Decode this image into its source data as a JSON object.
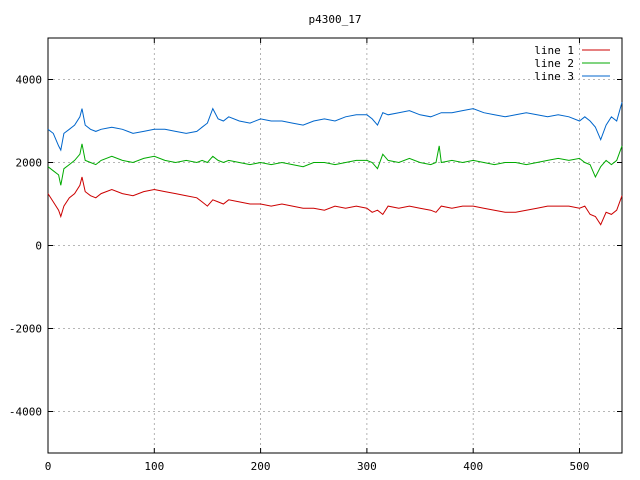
{
  "chart_data": {
    "type": "line",
    "title": "p4300_17",
    "xlabel": "",
    "ylabel": "",
    "xlim": [
      0,
      540
    ],
    "ylim": [
      -5000,
      5000
    ],
    "xticks": [
      0,
      100,
      200,
      300,
      400,
      500
    ],
    "yticks": [
      -4000,
      -2000,
      0,
      2000,
      4000
    ],
    "grid": true,
    "legend_position": "top-right",
    "series": [
      {
        "name": "line 1",
        "color": "#cc0000",
        "x": [
          0,
          5,
          10,
          12,
          15,
          20,
          25,
          30,
          32,
          35,
          40,
          45,
          50,
          60,
          70,
          80,
          90,
          100,
          110,
          120,
          130,
          140,
          145,
          150,
          155,
          160,
          165,
          170,
          180,
          190,
          200,
          210,
          220,
          230,
          240,
          250,
          260,
          270,
          280,
          290,
          300,
          305,
          310,
          315,
          320,
          330,
          340,
          350,
          360,
          365,
          370,
          380,
          390,
          400,
          410,
          420,
          430,
          440,
          450,
          460,
          470,
          480,
          490,
          500,
          505,
          510,
          515,
          520,
          525,
          530,
          535,
          540
        ],
        "y": [
          1250,
          1050,
          850,
          700,
          950,
          1150,
          1250,
          1450,
          1650,
          1300,
          1200,
          1150,
          1250,
          1350,
          1250,
          1200,
          1300,
          1350,
          1300,
          1250,
          1200,
          1150,
          1050,
          950,
          1100,
          1050,
          1000,
          1100,
          1050,
          1000,
          1000,
          950,
          1000,
          950,
          900,
          900,
          850,
          950,
          900,
          950,
          900,
          800,
          850,
          750,
          950,
          900,
          950,
          900,
          850,
          800,
          950,
          900,
          950,
          950,
          900,
          850,
          800,
          800,
          850,
          900,
          950,
          950,
          950,
          900,
          950,
          750,
          700,
          500,
          800,
          750,
          850,
          1200
        ]
      },
      {
        "name": "line 2",
        "color": "#00aa00",
        "x": [
          0,
          5,
          10,
          12,
          15,
          20,
          25,
          30,
          32,
          35,
          40,
          45,
          50,
          60,
          70,
          80,
          90,
          100,
          110,
          120,
          130,
          140,
          145,
          150,
          155,
          160,
          165,
          170,
          180,
          190,
          200,
          210,
          220,
          230,
          240,
          250,
          260,
          270,
          280,
          290,
          300,
          305,
          310,
          315,
          320,
          330,
          340,
          350,
          360,
          365,
          368,
          370,
          380,
          390,
          400,
          410,
          420,
          430,
          440,
          450,
          460,
          470,
          480,
          490,
          500,
          505,
          510,
          515,
          520,
          525,
          530,
          535,
          540
        ],
        "y": [
          1900,
          1800,
          1700,
          1450,
          1850,
          1950,
          2050,
          2200,
          2450,
          2050,
          2000,
          1950,
          2050,
          2150,
          2050,
          2000,
          2100,
          2150,
          2050,
          2000,
          2050,
          2000,
          2050,
          2000,
          2150,
          2050,
          2000,
          2050,
          2000,
          1950,
          2000,
          1950,
          2000,
          1950,
          1900,
          2000,
          2000,
          1950,
          2000,
          2050,
          2050,
          2000,
          1850,
          2200,
          2050,
          2000,
          2100,
          2000,
          1950,
          2000,
          2400,
          2000,
          2050,
          2000,
          2050,
          2000,
          1950,
          2000,
          2000,
          1950,
          2000,
          2050,
          2100,
          2050,
          2100,
          2000,
          1950,
          1650,
          1900,
          2050,
          1950,
          2050,
          2400
        ]
      },
      {
        "name": "line 3",
        "color": "#0066cc",
        "x": [
          0,
          5,
          10,
          12,
          15,
          20,
          25,
          30,
          32,
          35,
          40,
          45,
          50,
          60,
          70,
          80,
          90,
          100,
          110,
          120,
          130,
          140,
          145,
          150,
          155,
          160,
          165,
          170,
          180,
          190,
          200,
          210,
          220,
          230,
          240,
          250,
          260,
          270,
          280,
          290,
          300,
          305,
          310,
          315,
          320,
          330,
          340,
          350,
          360,
          365,
          370,
          380,
          390,
          400,
          410,
          420,
          430,
          440,
          450,
          460,
          470,
          480,
          490,
          500,
          505,
          510,
          515,
          520,
          525,
          530,
          535,
          540
        ],
        "y": [
          2800,
          2700,
          2400,
          2300,
          2700,
          2800,
          2900,
          3100,
          3300,
          2900,
          2800,
          2750,
          2800,
          2850,
          2800,
          2700,
          2750,
          2800,
          2800,
          2750,
          2700,
          2750,
          2850,
          2950,
          3300,
          3050,
          3000,
          3100,
          3000,
          2950,
          3050,
          3000,
          3000,
          2950,
          2900,
          3000,
          3050,
          3000,
          3100,
          3150,
          3150,
          3050,
          2900,
          3200,
          3150,
          3200,
          3250,
          3150,
          3100,
          3150,
          3200,
          3200,
          3250,
          3300,
          3200,
          3150,
          3100,
          3150,
          3200,
          3150,
          3100,
          3150,
          3100,
          3000,
          3100,
          3000,
          2850,
          2550,
          2900,
          3100,
          3000,
          3450
        ]
      }
    ]
  }
}
